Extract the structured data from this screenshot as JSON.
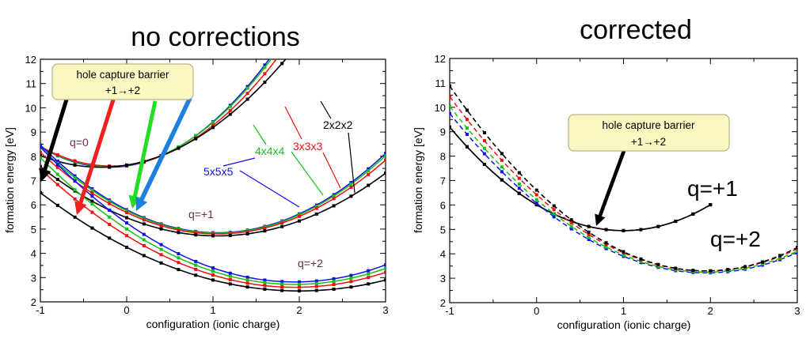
{
  "titles": {
    "left": "no corrections",
    "right": "corrected"
  },
  "colors": {
    "5x5x5": "#1010ee",
    "4x4x4": "#12c412",
    "3x3x3": "#ee1010",
    "2x2x2": "#000000",
    "arrow_black": "#000000",
    "arrow_red": "#ee2020",
    "arrow_green": "#22dd22",
    "arrow_blue": "#1e7fe0",
    "callout_fill": "#fbf7c2",
    "callout_stroke": "#b8b48a",
    "q_label": "#6b2a5a"
  },
  "icons": {
    "arrows": "filled-arrow-shapes"
  },
  "chart_data": [
    {
      "type": "line",
      "title": "no corrections",
      "xlabel": "configuration (ionic charge)",
      "ylabel": "formation energy [eV]",
      "xlim": [
        -1,
        3
      ],
      "ylim": [
        2,
        12
      ],
      "xticks": [
        "-1",
        "0",
        "1",
        "2",
        "3"
      ],
      "yticks": [
        "2",
        "3",
        "4",
        "5",
        "6",
        "7",
        "8",
        "9",
        "10",
        "11",
        "12"
      ],
      "callout": {
        "line1": "hole capture barrier",
        "line2": "+1→+2"
      },
      "annotations": [
        "q=0",
        "q=+1",
        "q=+2",
        "5x5x5",
        "4x4x4",
        "3x3x3",
        "2x2x2"
      ],
      "groups": [
        {
          "label": "q=0",
          "family": "parabola",
          "series": [
            {
              "name": "5x5x5",
              "color_key": "5x5x5",
              "a": 1.3,
              "x0": -0.2,
              "y0": 7.55
            },
            {
              "name": "4x4x4",
              "color_key": "4x4x4",
              "a": 1.26,
              "x0": -0.2,
              "y0": 7.58
            },
            {
              "name": "3x3x3",
              "color_key": "3x3x3",
              "a": 1.2,
              "x0": -0.18,
              "y0": 7.6
            },
            {
              "name": "2x2x2",
              "color_key": "2x2x2",
              "a": 0.97,
              "x0": -0.3,
              "y0": 7.55
            }
          ]
        },
        {
          "label": "q=+1",
          "family": "parabola",
          "series": [
            {
              "name": "5x5x5",
              "color_key": "5x5x5",
              "a": 0.86,
              "x0": 1.05,
              "y0": 4.85
            },
            {
              "name": "4x4x4",
              "color_key": "4x4x4",
              "a": 0.84,
              "x0": 1.05,
              "y0": 4.83
            },
            {
              "name": "3x3x3",
              "color_key": "3x3x3",
              "a": 0.8,
              "x0": 1.05,
              "y0": 4.8
            },
            {
              "name": "2x2x2",
              "color_key": "2x2x2",
              "a": 0.68,
              "x0": 1.05,
              "y0": 4.72
            }
          ]
        },
        {
          "label": "q=+2",
          "family": "parabola",
          "series": [
            {
              "name": "5x5x5",
              "color_key": "5x5x5",
              "a": 0.64,
              "x0": 1.95,
              "y0": 2.82
            },
            {
              "name": "4x4x4",
              "color_key": "4x4x4",
              "a": 0.6,
              "x0": 1.95,
              "y0": 2.72
            },
            {
              "name": "3x3x3",
              "color_key": "3x3x3",
              "a": 0.56,
              "x0": 1.95,
              "y0": 2.6
            },
            {
              "name": "2x2x2",
              "color_key": "2x2x2",
              "a": 0.45,
              "x0": 2.0,
              "y0": 2.45
            }
          ]
        }
      ]
    },
    {
      "type": "line",
      "title": "corrected",
      "xlabel": "configuration (ionic charge)",
      "ylabel": "formation energy [eV]",
      "xlim": [
        -1,
        3
      ],
      "ylim": [
        2,
        12
      ],
      "xticks": [
        "-1",
        "0",
        "1",
        "2",
        "3"
      ],
      "yticks": [
        "2",
        "3",
        "4",
        "5",
        "6",
        "7",
        "8",
        "9",
        "10",
        "11",
        "12"
      ],
      "callout": {
        "line1": "hole capture barrier",
        "line2": "+1→+2"
      },
      "annotations": [
        "q=+1",
        "q=+2"
      ],
      "groups": [
        {
          "label": "q=+1",
          "family": "parabola",
          "x_range": [
            -1,
            2
          ],
          "series": [
            {
              "name": "5x5x5",
              "color_key": "5x5x5",
              "a": 1.06,
              "x0": 1.0,
              "y0": 4.95
            },
            {
              "name": "4x4x4",
              "color_key": "4x4x4",
              "a": 1.06,
              "x0": 1.0,
              "y0": 4.95
            },
            {
              "name": "3x3x3",
              "color_key": "3x3x3",
              "a": 1.06,
              "x0": 1.0,
              "y0": 4.95
            },
            {
              "name": "2x2x2",
              "color_key": "2x2x2",
              "a": 1.06,
              "x0": 1.0,
              "y0": 4.95
            }
          ]
        },
        {
          "label": "q=+2",
          "family": "parabola",
          "dashed": true,
          "x_range": [
            -1,
            3
          ],
          "series": [
            {
              "name": "5x5x5",
              "color_key": "5x5x5",
              "a": 0.75,
              "x0": 1.95,
              "y0": 3.22
            },
            {
              "name": "4x4x4",
              "color_key": "4x4x4",
              "a": 0.78,
              "x0": 1.95,
              "y0": 3.25
            },
            {
              "name": "3x3x3",
              "color_key": "3x3x3",
              "a": 0.82,
              "x0": 1.95,
              "y0": 3.3
            },
            {
              "name": "2x2x2",
              "color_key": "2x2x2",
              "a": 0.87,
              "x0": 1.95,
              "y0": 3.3
            }
          ]
        }
      ]
    }
  ]
}
